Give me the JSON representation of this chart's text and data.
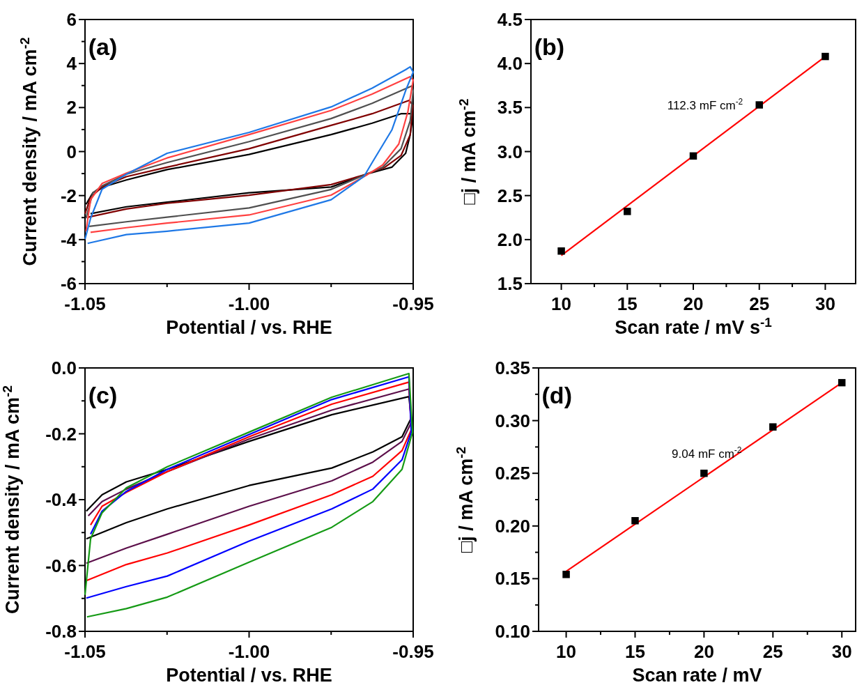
{
  "chart_data": [
    {
      "type": "line",
      "xlabel": "Potential / vs. RHE",
      "ylabel": "Current density / mA cm$^{-2}$",
      "xlim": [
        -1.05,
        -0.95
      ],
      "ylim": [
        -6,
        6
      ],
      "xticks": [
        {
          "value": -1.05,
          "label": "-1.05"
        },
        {
          "value": -1.025,
          "label": null
        },
        {
          "value": -1.0,
          "label": "-1.00"
        },
        {
          "value": -0.975,
          "label": null
        },
        {
          "value": -0.95,
          "label": "-0.95"
        }
      ],
      "yticks": [
        -6,
        {
          "value": -5,
          "label": null
        },
        -4,
        {
          "value": -3,
          "label": null
        },
        -2,
        {
          "value": -1,
          "label": null
        },
        0,
        {
          "value": 1,
          "label": null
        },
        2,
        {
          "value": 3,
          "label": null
        },
        4,
        {
          "value": 5,
          "label": null
        },
        6
      ],
      "annotations": [
        "(a)"
      ],
      "series": [
        {
          "color": "#000000",
          "x": [
            -1.0497,
            -1.0476,
            -1.0434,
            -1.0374,
            -1.025,
            -1.0,
            -0.975,
            -0.9625,
            -0.9537,
            -0.95,
            -0.9509,
            -0.9523,
            -0.9565,
            -0.9643,
            -0.975,
            -1.0,
            -1.025,
            -1.0374,
            -1.0483
          ],
          "values": [
            -2.4,
            -1.87,
            -1.56,
            -1.29,
            -0.82,
            -0.13,
            0.77,
            1.29,
            1.72,
            1.72,
            0.77,
            -0.08,
            -0.71,
            -1.03,
            -1.61,
            -1.87,
            -2.3,
            -2.51,
            -2.82
          ]
        },
        {
          "color": "#800000",
          "x": [
            -1.05,
            -1.0483,
            -1.0448,
            -1.0374,
            -1.025,
            -1.0,
            -0.975,
            -0.9625,
            -0.9512,
            -0.9501,
            -0.9509,
            -0.9537,
            -0.9586,
            -0.9643,
            -0.975,
            -1.0,
            -1.025,
            -1.0374,
            -1.049
          ],
          "values": [
            -2.82,
            -2.08,
            -1.61,
            -1.14,
            -0.71,
            0.13,
            1.19,
            1.72,
            2.33,
            2.09,
            0.77,
            -0.18,
            -0.71,
            -1.03,
            -1.5,
            -1.98,
            -2.35,
            -2.61,
            -2.98
          ]
        },
        {
          "color": "#505050",
          "x": [
            -1.0497,
            -1.0476,
            -1.0448,
            -1.0374,
            -1.025,
            -1.0,
            -0.975,
            -0.9625,
            -0.9505,
            -0.95,
            -0.9509,
            -0.9537,
            -0.9593,
            -0.9643,
            -0.975,
            -1.0,
            -1.025,
            -1.0374,
            -1.0487
          ],
          "values": [
            -3.03,
            -1.87,
            -1.56,
            -1.03,
            -0.5,
            0.45,
            1.5,
            2.19,
            2.98,
            2.77,
            1.4,
            0.13,
            -0.71,
            -1.03,
            -1.72,
            -2.56,
            -2.98,
            -3.19,
            -3.4
          ]
        },
        {
          "color": "#ff4040",
          "x": [
            -1.0497,
            -1.0483,
            -1.0448,
            -1.0374,
            -1.025,
            -1.0,
            -0.975,
            -0.9625,
            -0.9509,
            -0.95,
            -0.9516,
            -0.9544,
            -0.9593,
            -0.9643,
            -0.975,
            -1.0,
            -1.025,
            -1.0374,
            -1.0483
          ],
          "values": [
            -3.62,
            -2.19,
            -1.45,
            -0.98,
            -0.29,
            0.77,
            1.87,
            2.61,
            3.4,
            3.25,
            1.82,
            0.34,
            -0.61,
            -1.08,
            -1.98,
            -2.88,
            -3.25,
            -3.46,
            -3.67
          ]
        },
        {
          "color": "#1e78e6",
          "x": [
            -1.05,
            -1.0483,
            -1.0448,
            -1.0374,
            -1.025,
            -1.0,
            -0.975,
            -0.9625,
            -0.9523,
            -0.9509,
            -0.95,
            -0.9523,
            -0.9565,
            -0.9625,
            -0.965,
            -0.975,
            -1.0,
            -1.025,
            -1.0374,
            -1.0483,
            -1.0492
          ],
          "values": [
            -3.98,
            -3.03,
            -1.71,
            -1.03,
            -0.08,
            0.87,
            2.03,
            2.88,
            3.72,
            3.85,
            3.61,
            2.77,
            0.98,
            -0.5,
            -1.13,
            -2.19,
            -3.25,
            -3.62,
            -3.77,
            -4.14,
            -4.17
          ]
        }
      ]
    },
    {
      "type": "scatter",
      "xlabel": "Scan rate / mV s$^{-1}$",
      "ylabel": "□j / mA cm$^{-2}$",
      "xlim": [
        7.7,
        32.3
      ],
      "ylim": [
        1.5,
        4.5
      ],
      "xticks": [
        10,
        {
          "value": 12.5,
          "label": null
        },
        15,
        {
          "value": 17.5,
          "label": null
        },
        20,
        {
          "value": 22.5,
          "label": null
        },
        25,
        {
          "value": 27.5,
          "label": null
        },
        30
      ],
      "yticks": [
        1.5,
        {
          "value": 2,
          "label": "2.0"
        },
        2.5,
        {
          "value": 3,
          "label": "3.0"
        },
        3.5,
        {
          "value": 4,
          "label": "4.0"
        },
        4.5
      ],
      "annotations": [
        "(b)",
        "112.3 mF cm$^{-2}$"
      ],
      "series": [
        {
          "type": "line",
          "color": "#ff0000",
          "x": [
            10,
            30
          ],
          "values": [
            1.82,
            4.08
          ]
        },
        {
          "marker": "square",
          "color": "#000000",
          "x": [
            10,
            15,
            20,
            25,
            30
          ],
          "values": [
            1.87,
            2.32,
            2.95,
            3.53,
            4.08
          ]
        }
      ]
    },
    {
      "type": "line",
      "xlabel": "Potential / vs. RHE",
      "ylabel": "Current density / mA cm$^{-2}$",
      "xlim": [
        -1.05,
        -0.95
      ],
      "ylim": [
        -0.8,
        0
      ],
      "xticks": [
        {
          "value": -1.05,
          "label": "-1.05"
        },
        {
          "value": -1.025,
          "label": null
        },
        {
          "value": -1.0,
          "label": "-1.00"
        },
        {
          "value": -0.975,
          "label": null
        },
        {
          "value": -0.95,
          "label": "-0.95"
        }
      ],
      "yticks": [
        -0.8,
        {
          "value": -0.7,
          "label": null
        },
        -0.6,
        {
          "value": -0.5,
          "label": null
        },
        -0.4,
        {
          "value": -0.3,
          "label": null
        },
        -0.2,
        {
          "value": -0.1,
          "label": null
        },
        {
          "value": 0,
          "label": "0.0"
        }
      ],
      "annotations": [
        "(c)"
      ],
      "series": [
        {
          "color": "#000000",
          "x": [
            -1.0496,
            -1.0448,
            -1.0374,
            -1.0249,
            -1.0,
            -0.9748,
            -0.9513,
            -0.9506,
            -0.9534,
            -0.9623,
            -0.9748,
            -1.0,
            -1.0249,
            -1.0374,
            -1.0496
          ],
          "values": [
            -0.435,
            -0.385,
            -0.346,
            -0.308,
            -0.223,
            -0.142,
            -0.087,
            -0.152,
            -0.209,
            -0.255,
            -0.304,
            -0.357,
            -0.428,
            -0.47,
            -0.519
          ]
        },
        {
          "color": "#5c0f4a",
          "x": [
            -1.049,
            -1.0448,
            -1.0374,
            -1.0249,
            -1.0,
            -0.9748,
            -0.9513,
            -0.9506,
            -0.9534,
            -0.9623,
            -0.9748,
            -1.0,
            -1.0249,
            -1.0374,
            -1.0496
          ],
          "values": [
            -0.449,
            -0.406,
            -0.368,
            -0.315,
            -0.216,
            -0.128,
            -0.064,
            -0.166,
            -0.223,
            -0.286,
            -0.343,
            -0.42,
            -0.505,
            -0.547,
            -0.593
          ]
        },
        {
          "color": "#ff0000",
          "x": [
            -1.0483,
            -1.0448,
            -1.0374,
            -1.0249,
            -1.0,
            -0.9748,
            -0.9513,
            -0.9506,
            -0.9534,
            -0.9623,
            -0.9748,
            -1.0,
            -1.0249,
            -1.0374,
            -1.0496
          ],
          "values": [
            -0.477,
            -0.42,
            -0.378,
            -0.315,
            -0.209,
            -0.11,
            -0.043,
            -0.188,
            -0.251,
            -0.329,
            -0.385,
            -0.477,
            -0.562,
            -0.597,
            -0.646
          ]
        },
        {
          "color": "#0000ff",
          "x": [
            -1.0483,
            -1.0448,
            -1.0374,
            -1.0249,
            -1.0,
            -0.9748,
            -0.9513,
            -0.9506,
            -0.9534,
            -0.9623,
            -0.9748,
            -1.0,
            -1.0249,
            -1.0374,
            -1.0496
          ],
          "values": [
            -0.505,
            -0.435,
            -0.375,
            -0.308,
            -0.202,
            -0.096,
            -0.027,
            -0.195,
            -0.279,
            -0.368,
            -0.428,
            -0.526,
            -0.632,
            -0.664,
            -0.699
          ]
        },
        {
          "color": "#159a15",
          "x": [
            -1.05,
            -1.0483,
            -1.0448,
            -1.0374,
            -1.0249,
            -1.0,
            -0.9748,
            -0.9513,
            -0.9502,
            -0.9534,
            -0.9623,
            -0.9748,
            -1.0,
            -1.0249,
            -1.0374,
            -1.0494
          ],
          "values": [
            -0.689,
            -0.519,
            -0.44,
            -0.364,
            -0.3,
            -0.195,
            -0.089,
            -0.017,
            -0.195,
            -0.308,
            -0.406,
            -0.484,
            -0.59,
            -0.696,
            -0.731,
            -0.756
          ]
        }
      ]
    },
    {
      "type": "scatter",
      "xlabel": "Scan rate / mV",
      "ylabel": "□j / mA cm$^{-2}$",
      "xlim": [
        8,
        31
      ],
      "ylim": [
        0.1,
        0.35
      ],
      "xticks": [
        10,
        {
          "value": 12.5,
          "label": null
        },
        15,
        {
          "value": 17.5,
          "label": null
        },
        20,
        {
          "value": 22.5,
          "label": null
        },
        25,
        {
          "value": 27.5,
          "label": null
        },
        30
      ],
      "yticks": [
        {
          "value": 0.1,
          "label": "0.10"
        },
        {
          "value": 0.125,
          "label": null
        },
        0.15,
        {
          "value": 0.175,
          "label": null
        },
        {
          "value": 0.2,
          "label": "0.20"
        },
        {
          "value": 0.225,
          "label": null
        },
        0.25,
        {
          "value": 0.275,
          "label": null
        },
        {
          "value": 0.3,
          "label": "0.30"
        },
        {
          "value": 0.325,
          "label": null
        },
        0.35
      ],
      "annotations": [
        "(d)",
        "9.04 mF cm$^{-2}$"
      ],
      "series": [
        {
          "type": "line",
          "color": "#ff0000",
          "x": [
            10,
            30
          ],
          "values": [
            0.157,
            0.336
          ]
        },
        {
          "marker": "square",
          "color": "#000000",
          "x": [
            10,
            15,
            20,
            25,
            30
          ],
          "values": [
            0.154,
            0.205,
            0.25,
            0.294,
            0.336
          ]
        }
      ]
    }
  ]
}
